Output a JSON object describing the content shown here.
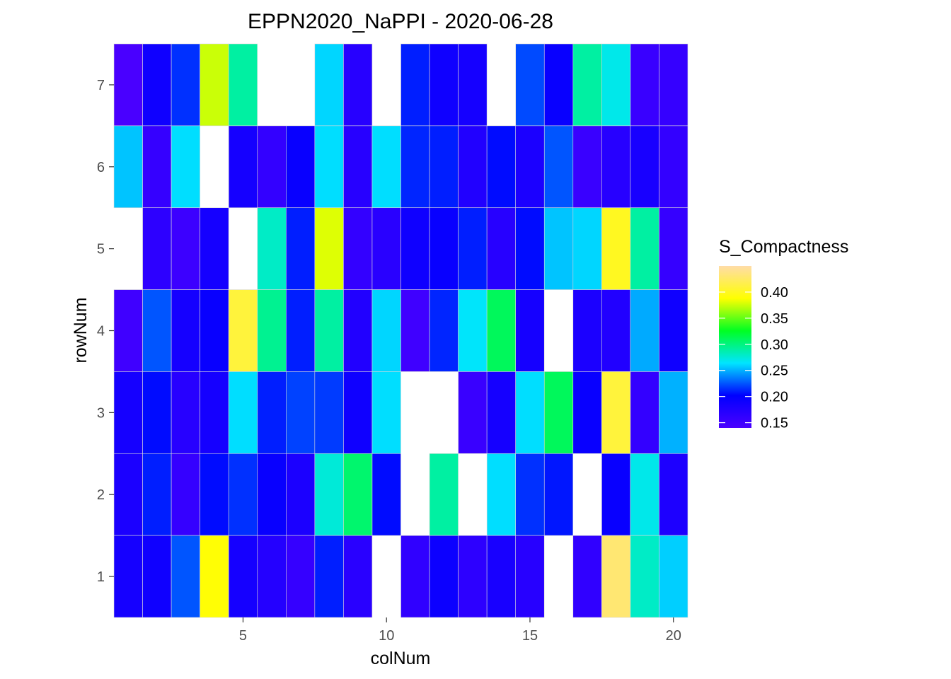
{
  "chart_data": {
    "type": "heatmap",
    "title": "EPPN2020_NaPPI - 2020-06-28",
    "xlabel": "colNum",
    "ylabel": "rowNum",
    "xlim": [
      0.5,
      20.5
    ],
    "ylim": [
      0.5,
      7.5
    ],
    "x_ticks": [
      5,
      10,
      15,
      20
    ],
    "y_ticks": [
      1,
      2,
      3,
      4,
      5,
      6,
      7
    ],
    "x_tick_labels": [
      "5",
      "10",
      "15",
      "20"
    ],
    "y_tick_labels": [
      "1",
      "2",
      "3",
      "4",
      "5",
      "6",
      "7"
    ],
    "grid": false,
    "legend": {
      "title": "S_Compactness",
      "placement": "right",
      "min": 0.14,
      "max": 0.45,
      "breaks": [
        0.15,
        0.2,
        0.25,
        0.3,
        0.35,
        0.4
      ],
      "break_labels": [
        "0.15",
        "0.20",
        "0.25",
        "0.30",
        "0.35",
        "0.40"
      ],
      "colors": [
        "#4b00ff",
        "#0000ff",
        "#00e5ff",
        "#00ff22",
        "#ffff00",
        "#ffdca8"
      ]
    },
    "columns": [
      "1",
      "2",
      "3",
      "4",
      "5",
      "6",
      "7",
      "8",
      "9",
      "10",
      "11",
      "12",
      "13",
      "14",
      "15",
      "16",
      "17",
      "18",
      "19",
      "20"
    ],
    "rows": [
      {
        "row": 7,
        "values": [
          0.142,
          0.19,
          0.215,
          0.375,
          0.29,
          null,
          null,
          0.26,
          0.17,
          null,
          0.21,
          0.19,
          0.185,
          null,
          0.222,
          0.195,
          0.29,
          0.27,
          0.155,
          0.158
        ]
      },
      {
        "row": 6,
        "values": [
          0.255,
          0.158,
          0.262,
          null,
          0.185,
          0.16,
          0.195,
          0.262,
          0.17,
          0.262,
          0.212,
          0.21,
          0.175,
          0.205,
          0.18,
          0.225,
          0.155,
          0.17,
          0.182,
          0.16
        ]
      },
      {
        "row": 5,
        "values": [
          null,
          0.165,
          0.152,
          0.185,
          null,
          0.28,
          0.21,
          0.38,
          0.16,
          0.168,
          0.19,
          0.195,
          0.21,
          0.17,
          0.205,
          0.255,
          0.26,
          0.4,
          0.29,
          0.158
        ]
      },
      {
        "row": 4,
        "values": [
          0.15,
          0.225,
          0.185,
          0.195,
          0.41,
          0.295,
          0.21,
          0.29,
          0.175,
          0.26,
          0.15,
          0.212,
          0.265,
          0.31,
          0.185,
          null,
          0.18,
          0.175,
          0.248,
          0.19
        ]
      },
      {
        "row": 3,
        "values": [
          0.185,
          0.205,
          0.17,
          0.185,
          0.262,
          0.21,
          0.22,
          0.218,
          0.19,
          0.262,
          null,
          null,
          0.155,
          0.185,
          0.262,
          0.31,
          0.195,
          0.41,
          0.16,
          0.25
        ]
      },
      {
        "row": 2,
        "values": [
          0.18,
          0.21,
          0.158,
          0.205,
          0.215,
          0.195,
          0.18,
          0.275,
          0.305,
          0.205,
          null,
          0.29,
          null,
          0.262,
          0.215,
          0.208,
          null,
          0.195,
          0.27,
          0.178
        ]
      },
      {
        "row": 1,
        "values": [
          0.185,
          0.19,
          0.225,
          0.39,
          0.185,
          0.172,
          0.158,
          0.21,
          0.168,
          null,
          0.162,
          0.192,
          0.165,
          0.182,
          0.17,
          null,
          0.162,
          0.43,
          0.28,
          0.258
        ]
      }
    ]
  }
}
